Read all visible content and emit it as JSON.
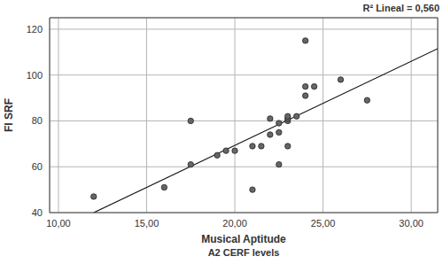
{
  "chart_data": {
    "type": "scatter",
    "xlabel": "Musical Aptitude",
    "ylabel": "FI SRF",
    "caption": "A2 CERF levels",
    "annotation": "R² Lineal = 0,560",
    "x": [
      12,
      16,
      17.5,
      17.5,
      19,
      19.5,
      20,
      21,
      21,
      21.5,
      22,
      22,
      22.5,
      22.5,
      22.5,
      23,
      23,
      23,
      23,
      23.5,
      24,
      24,
      24,
      24.5,
      26,
      27.5
    ],
    "values": [
      47,
      51,
      61,
      80,
      65,
      67,
      67,
      50,
      69,
      69,
      74,
      81,
      61,
      75,
      79,
      69,
      80,
      81,
      82,
      82,
      91,
      95,
      115,
      95,
      98,
      89
    ],
    "fit_line": {
      "x": [
        12,
        31.5
      ],
      "y": [
        40,
        111.5
      ]
    },
    "color": "#666666",
    "marker": "circle",
    "xlim": [
      9.5,
      31.5
    ],
    "ylim": [
      40,
      125
    ],
    "xticks": [
      {
        "value": 10,
        "label": "10,00"
      },
      {
        "value": 15,
        "label": "15,00"
      },
      {
        "value": 20,
        "label": "20,00"
      },
      {
        "value": 25,
        "label": "25,00"
      },
      {
        "value": 30,
        "label": "30,00"
      }
    ],
    "yticks": [
      40,
      60,
      80,
      100,
      120
    ],
    "grid": true
  }
}
